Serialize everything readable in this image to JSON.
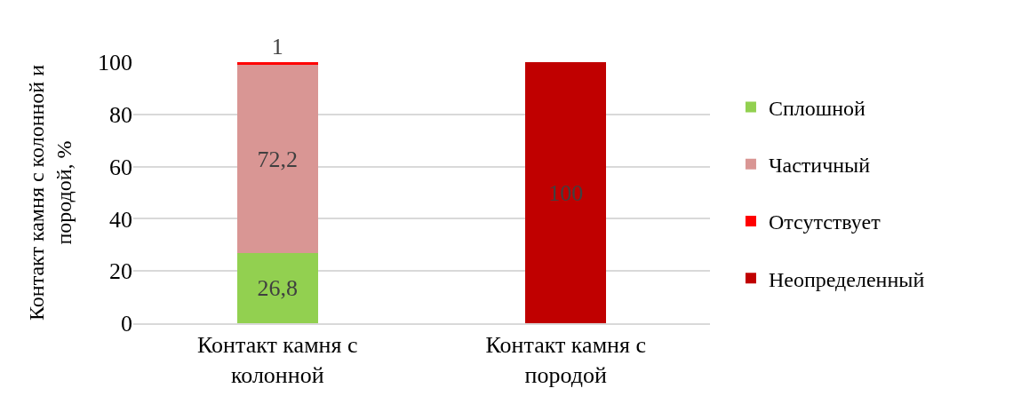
{
  "chart_data": {
    "type": "bar",
    "stacked": true,
    "categories": [
      "Контакт камня с колонной",
      "Контакт камня с породой"
    ],
    "ylabel": "Контакт камня с колонной и породой, %",
    "series": [
      {
        "name": "Сплошной",
        "color": "#92d050",
        "values": [
          26.8,
          null
        ],
        "value_labels": [
          "26,8",
          null
        ]
      },
      {
        "name": "Частичный",
        "color": "#d99694",
        "values": [
          72.2,
          null
        ],
        "value_labels": [
          "72,2",
          null
        ]
      },
      {
        "name": "Отсутствует",
        "color": "#ff0000",
        "values": [
          1,
          null
        ],
        "value_labels": [
          "1",
          null
        ]
      },
      {
        "name": "Неопределенный",
        "color": "#c00000",
        "values": [
          null,
          100
        ],
        "value_labels": [
          null,
          "100"
        ]
      }
    ],
    "ylim": [
      0,
      100
    ],
    "yticks": [
      0,
      20,
      40,
      60,
      80,
      100
    ],
    "grid": "y",
    "legend": "right"
  }
}
